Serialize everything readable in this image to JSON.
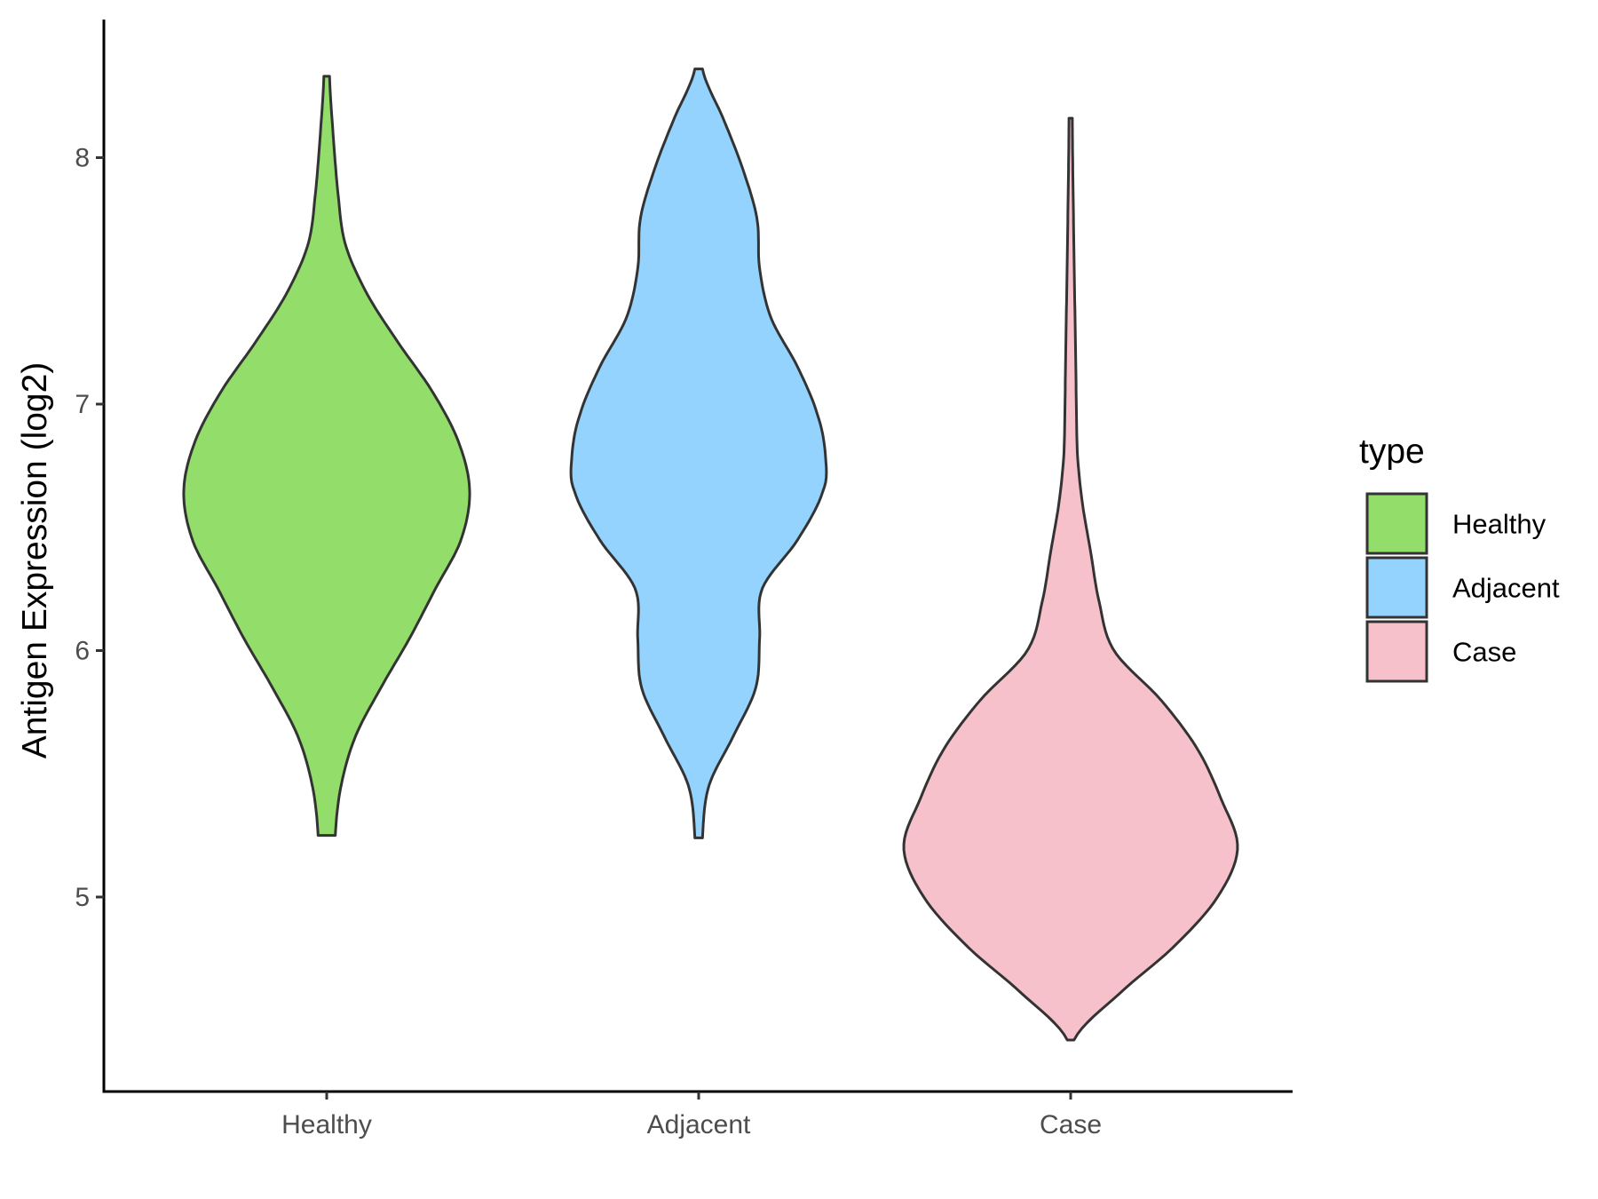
{
  "chart_data": {
    "type": "violin",
    "title": "",
    "xlabel": "",
    "ylabel": "Antigen Expression (log2)",
    "ylim": [
      4.3,
      8.55
    ],
    "yticks": [
      5,
      6,
      7,
      8
    ],
    "categories": [
      "Healthy",
      "Adjacent",
      "Case"
    ],
    "grid": false,
    "legend": {
      "title": "type",
      "placement": "right",
      "entries": [
        "Healthy",
        "Adjacent",
        "Case"
      ]
    },
    "colors": {
      "Healthy": "#93dd6a",
      "Adjacent": "#94d3fd",
      "Case": "#f7c1cc",
      "outline": "#333333"
    },
    "series": [
      {
        "name": "Healthy",
        "ymin": 5.25,
        "ymax": 8.33,
        "profile": [
          [
            5.25,
            0.06
          ],
          [
            5.45,
            0.1
          ],
          [
            5.65,
            0.2
          ],
          [
            5.85,
            0.38
          ],
          [
            6.05,
            0.58
          ],
          [
            6.25,
            0.76
          ],
          [
            6.45,
            0.94
          ],
          [
            6.65,
            1.0
          ],
          [
            6.85,
            0.92
          ],
          [
            7.05,
            0.74
          ],
          [
            7.25,
            0.5
          ],
          [
            7.45,
            0.28
          ],
          [
            7.65,
            0.13
          ],
          [
            7.85,
            0.08
          ],
          [
            8.05,
            0.05
          ],
          [
            8.33,
            0.02
          ]
        ]
      },
      {
        "name": "Adjacent",
        "ymin": 5.24,
        "ymax": 8.36,
        "profile": [
          [
            5.24,
            0.03
          ],
          [
            5.45,
            0.08
          ],
          [
            5.65,
            0.27
          ],
          [
            5.85,
            0.45
          ],
          [
            6.05,
            0.48
          ],
          [
            6.25,
            0.5
          ],
          [
            6.45,
            0.78
          ],
          [
            6.65,
            0.98
          ],
          [
            6.78,
            1.0
          ],
          [
            6.95,
            0.94
          ],
          [
            7.15,
            0.78
          ],
          [
            7.35,
            0.57
          ],
          [
            7.55,
            0.48
          ],
          [
            7.75,
            0.46
          ],
          [
            7.95,
            0.35
          ],
          [
            8.15,
            0.2
          ],
          [
            8.36,
            0.03
          ]
        ]
      },
      {
        "name": "Case",
        "ymin": 4.42,
        "ymax": 8.16,
        "profile": [
          [
            4.42,
            0.02
          ],
          [
            4.6,
            0.28
          ],
          [
            4.8,
            0.62
          ],
          [
            5.0,
            0.88
          ],
          [
            5.2,
            1.0
          ],
          [
            5.4,
            0.9
          ],
          [
            5.6,
            0.76
          ],
          [
            5.8,
            0.54
          ],
          [
            6.0,
            0.26
          ],
          [
            6.2,
            0.17
          ],
          [
            6.4,
            0.12
          ],
          [
            6.6,
            0.07
          ],
          [
            6.8,
            0.04
          ],
          [
            7.2,
            0.03
          ],
          [
            7.6,
            0.02
          ],
          [
            8.16,
            0.01
          ]
        ]
      }
    ]
  }
}
